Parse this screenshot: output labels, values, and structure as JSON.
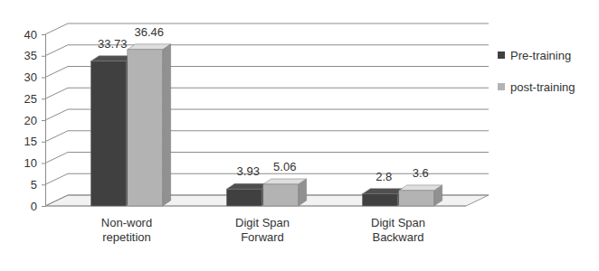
{
  "chart_data": {
    "type": "bar",
    "categories": [
      "Non-word repetition",
      "Digit Span Forward",
      "Digit Span Backward"
    ],
    "series": [
      {
        "name": "Pre-training",
        "color": "#404040",
        "values": [
          33.73,
          3.93,
          2.8
        ]
      },
      {
        "name": "post-training",
        "color": "#b3b3b3",
        "values": [
          36.46,
          5.06,
          3.6
        ]
      }
    ],
    "ylim": [
      0,
      40
    ],
    "yticks": [
      0,
      5,
      10,
      15,
      20,
      25,
      30,
      35,
      40
    ],
    "grid": true,
    "legend": "right",
    "data_labels": true
  }
}
